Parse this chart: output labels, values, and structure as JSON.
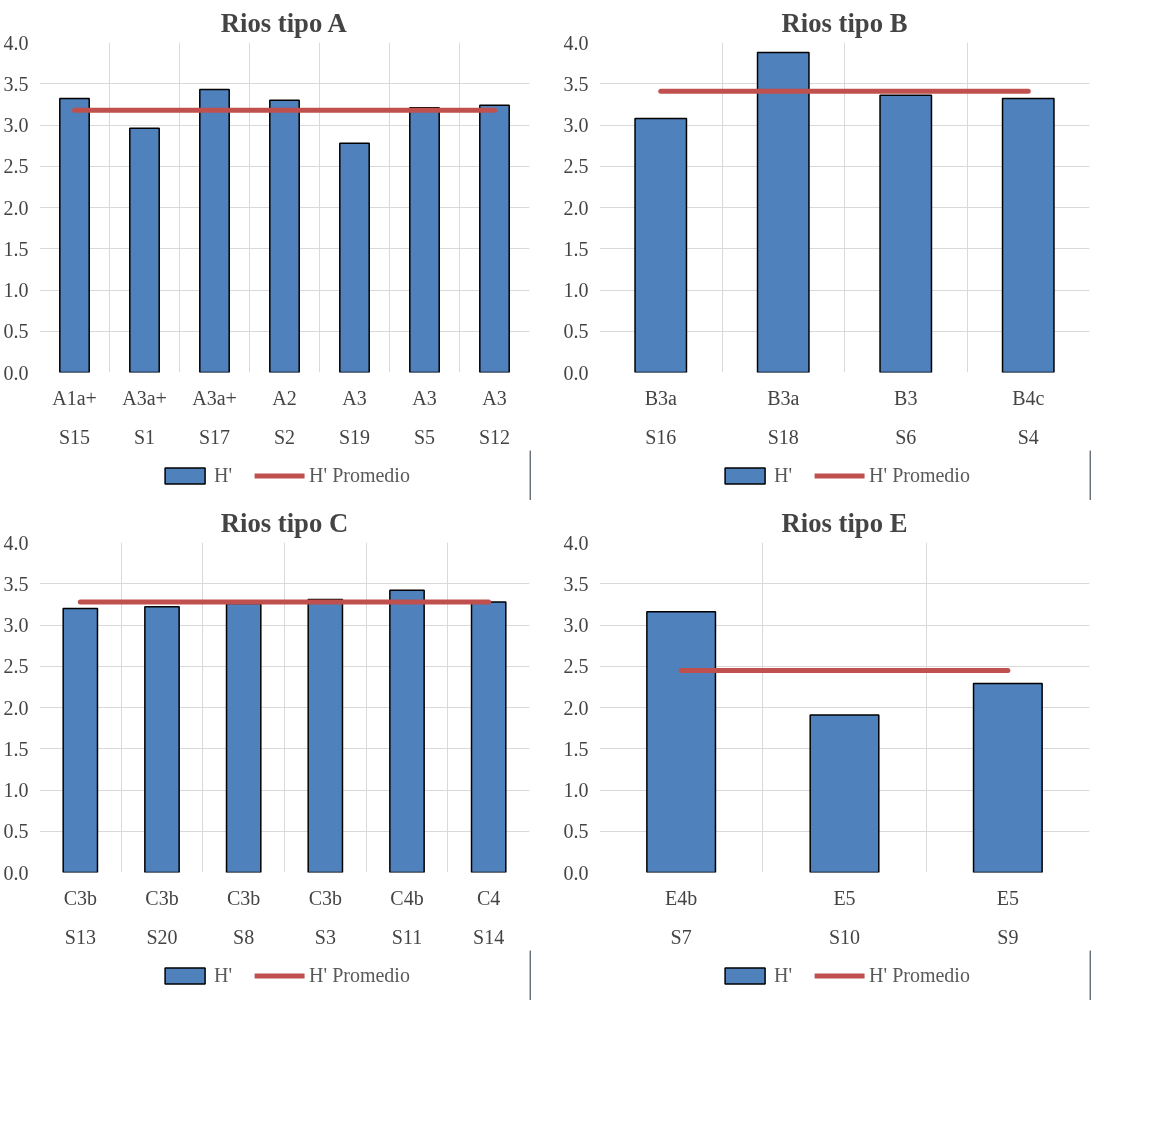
{
  "chart_data": [
    {
      "type": "bar",
      "title": "Rios tipo A",
      "categories": [
        "A1a+\nS15",
        "A3a+\nS1",
        "A3a+\nS17",
        "A2\nS2",
        "A3\nS19",
        "A3\nS5",
        "A3\nS12"
      ],
      "series": [
        {
          "name": "H'",
          "color": "#4f81bd",
          "values": [
            3.32,
            2.96,
            3.43,
            3.3,
            2.78,
            3.21,
            3.24
          ]
        },
        {
          "name": "H' Promedio",
          "type": "line",
          "color": "#c0504d",
          "values": [
            3.18,
            3.18,
            3.18,
            3.18,
            3.18,
            3.18,
            3.18
          ]
        }
      ],
      "ylim": [
        0,
        4
      ],
      "yticks": [
        {
          "value": 0,
          "label": "0.0"
        },
        {
          "value": 0.5,
          "label": "0.5"
        },
        {
          "value": 1,
          "label": "1.0"
        },
        {
          "value": 1.5,
          "label": "1.5"
        },
        {
          "value": 2,
          "label": "2.0"
        },
        {
          "value": 2.5,
          "label": "2.5"
        },
        {
          "value": 3,
          "label": "3.0"
        },
        {
          "value": 3.5,
          "label": "3.5"
        },
        {
          "value": 4,
          "label": "4.0"
        }
      ],
      "grid": true,
      "legend": "bottom"
    },
    {
      "type": "bar",
      "title": "Rios tipo B",
      "categories": [
        "B3a\nS16",
        "B3a\nS18",
        "B3\nS6",
        "B4c\nS4"
      ],
      "series": [
        {
          "name": "H'",
          "color": "#4f81bd",
          "values": [
            3.08,
            3.88,
            3.36,
            3.32
          ]
        },
        {
          "name": "H' Promedio",
          "type": "line",
          "color": "#c0504d",
          "values": [
            3.41,
            3.41,
            3.41,
            3.41
          ]
        }
      ],
      "ylim": [
        0,
        4
      ],
      "yticks": [
        {
          "value": 0,
          "label": "0.0"
        },
        {
          "value": 0.5,
          "label": "0.5"
        },
        {
          "value": 1,
          "label": "1.0"
        },
        {
          "value": 1.5,
          "label": "1.5"
        },
        {
          "value": 2,
          "label": "2.0"
        },
        {
          "value": 2.5,
          "label": "2.5"
        },
        {
          "value": 3,
          "label": "3.0"
        },
        {
          "value": 3.5,
          "label": "3.5"
        },
        {
          "value": 4,
          "label": "4.0"
        }
      ],
      "grid": true,
      "legend": "bottom"
    },
    {
      "type": "bar",
      "title": "Rios tipo C",
      "categories": [
        "C3b\nS13",
        "C3b\nS20",
        "C3b\nS8",
        "C3b\nS3",
        "C4b\nS11",
        "C4\nS14"
      ],
      "series": [
        {
          "name": "H'",
          "color": "#4f81bd",
          "values": [
            3.2,
            3.22,
            3.26,
            3.31,
            3.42,
            3.28
          ]
        },
        {
          "name": "H' Promedio",
          "type": "line",
          "color": "#c0504d",
          "values": [
            3.28,
            3.28,
            3.28,
            3.28,
            3.28,
            3.28
          ]
        }
      ],
      "ylim": [
        0,
        4
      ],
      "yticks": [
        {
          "value": 0,
          "label": "0.0"
        },
        {
          "value": 0.5,
          "label": "0.5"
        },
        {
          "value": 1,
          "label": "1.0"
        },
        {
          "value": 1.5,
          "label": "1.5"
        },
        {
          "value": 2,
          "label": "2.0"
        },
        {
          "value": 2.5,
          "label": "2.5"
        },
        {
          "value": 3,
          "label": "3.0"
        },
        {
          "value": 3.5,
          "label": "3.5"
        },
        {
          "value": 4,
          "label": "4.0"
        }
      ],
      "grid": true,
      "legend": "bottom"
    },
    {
      "type": "bar",
      "title": "Rios tipo E",
      "categories": [
        "E4b\nS7",
        "E5\nS10",
        "E5\nS9"
      ],
      "series": [
        {
          "name": "H'",
          "color": "#4f81bd",
          "values": [
            3.16,
            1.91,
            2.29
          ]
        },
        {
          "name": "H' Promedio",
          "type": "line",
          "color": "#c0504d",
          "values": [
            2.45,
            2.45,
            2.45
          ]
        }
      ],
      "ylim": [
        0,
        4
      ],
      "yticks": [
        {
          "value": 0,
          "label": "0.0"
        },
        {
          "value": 0.5,
          "label": "0.5"
        },
        {
          "value": 1,
          "label": "1.0"
        },
        {
          "value": 1.5,
          "label": "1.5"
        },
        {
          "value": 2,
          "label": "2.0"
        },
        {
          "value": 2.5,
          "label": "2.5"
        },
        {
          "value": 3,
          "label": "3.0"
        },
        {
          "value": 3.5,
          "label": "3.5"
        },
        {
          "value": 4,
          "label": "4.0"
        }
      ],
      "grid": true,
      "legend": "bottom"
    }
  ]
}
